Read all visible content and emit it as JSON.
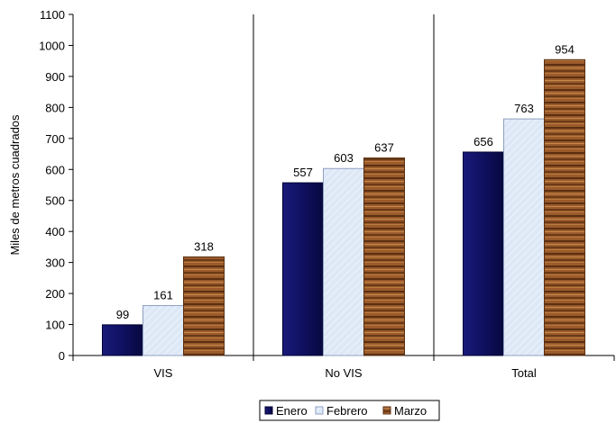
{
  "chart_data": {
    "type": "bar",
    "categories": [
      "VIS",
      "No VIS",
      "Total"
    ],
    "series": [
      {
        "name": "Enero",
        "values": [
          99,
          557,
          656
        ]
      },
      {
        "name": "Febrero",
        "values": [
          161,
          603,
          763
        ]
      },
      {
        "name": "Marzo",
        "values": [
          318,
          637,
          954
        ]
      }
    ],
    "ylabel": "Miles de metros cuadrados",
    "xlabel": "",
    "ylim": [
      0,
      1100
    ],
    "yticks": [
      0,
      100,
      200,
      300,
      400,
      500,
      600,
      700,
      800,
      900,
      1000,
      1100
    ],
    "grid": false,
    "legend_position": "bottom-center",
    "colors": {
      "Enero": "#0f1060",
      "Febrero": "#dbe6f5",
      "Marzo": "#9a5a2a"
    }
  }
}
